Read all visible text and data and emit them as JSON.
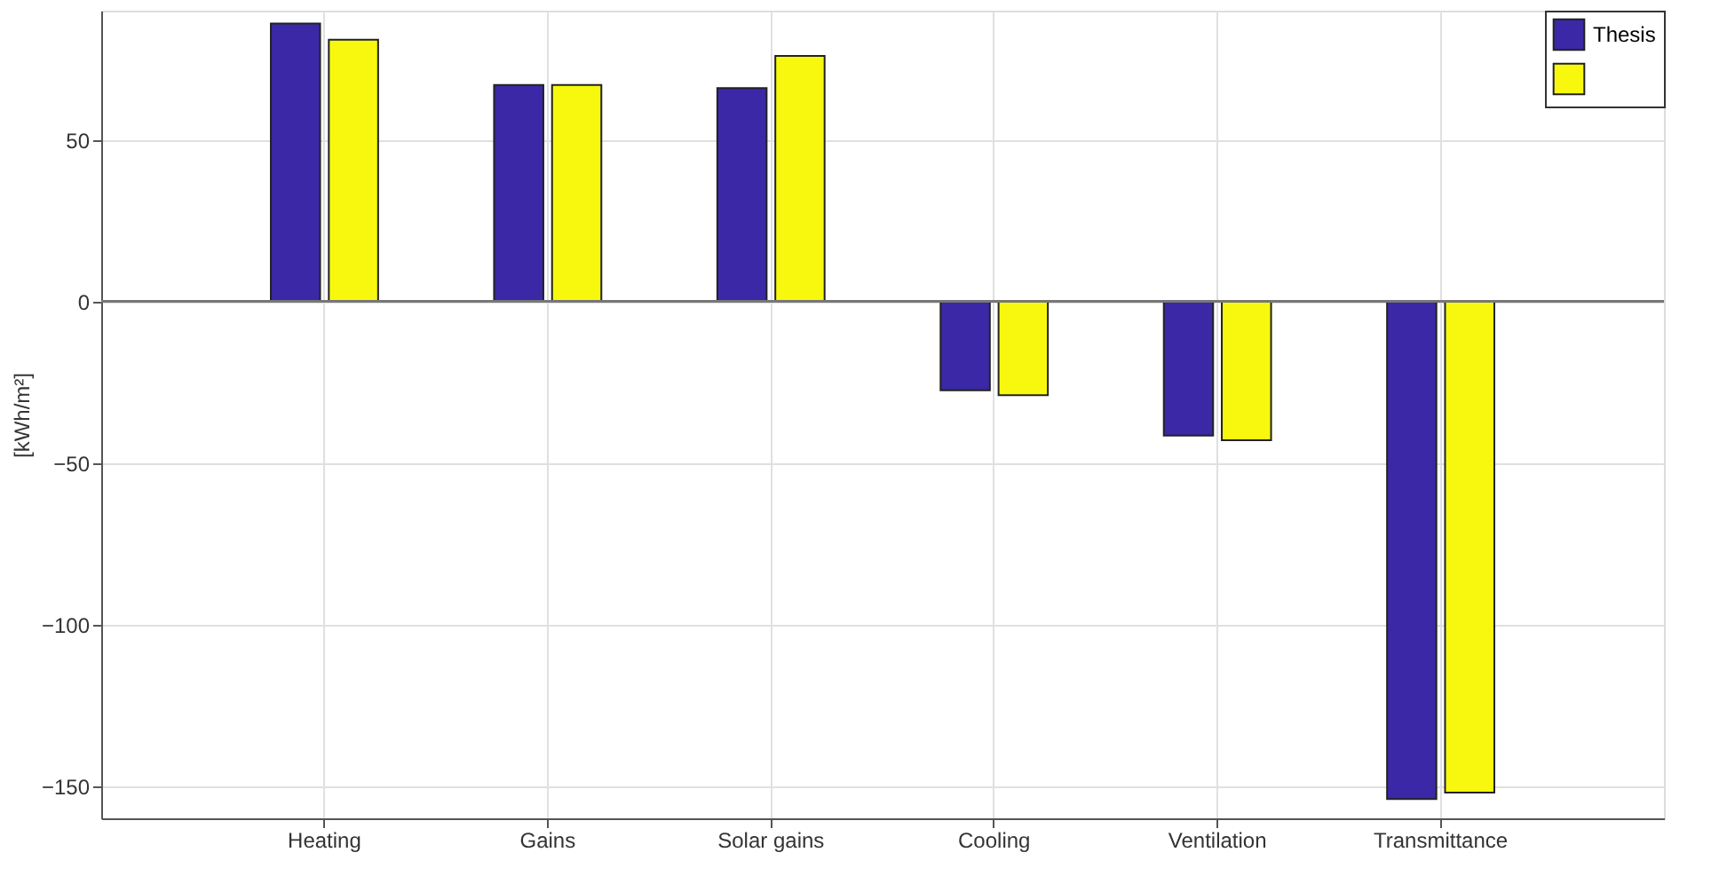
{
  "chart_data": {
    "type": "bar",
    "ylabel": "[kWh/m²]",
    "categories": [
      "Heating",
      "Gains",
      "Solar gains",
      "Cooling",
      "Ventilation",
      "Transmittance"
    ],
    "series": [
      {
        "name": "Thesis",
        "color": "#3a28a6",
        "values": [
          86,
          67,
          66,
          -27.5,
          -41.5,
          -154
        ]
      },
      {
        "color": "#f8f80e",
        "values": [
          81,
          67,
          76,
          -29,
          -43,
          -152
        ]
      }
    ],
    "ylim": [
      -160,
      90
    ],
    "yticks": [
      -150,
      -100,
      -50,
      0,
      50
    ],
    "grid": true,
    "legend": "top right"
  }
}
